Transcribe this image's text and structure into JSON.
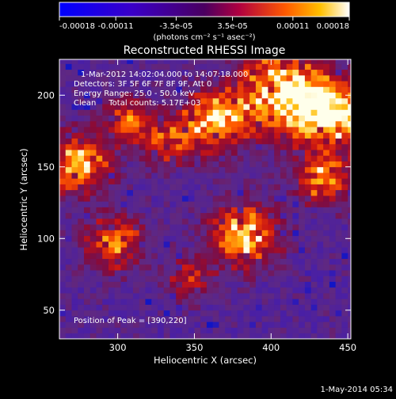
{
  "chart_data": {
    "type": "heatmap",
    "title": "Reconstructed RHESSI Image",
    "xlabel": "Heliocentric X (arcsec)",
    "ylabel": "Heliocentric Y (arcsec)",
    "xlim": [
      262,
      452
    ],
    "ylim": [
      30,
      225
    ],
    "xticks": [
      300,
      350,
      400,
      450
    ],
    "yticks": [
      50,
      100,
      150,
      200
    ],
    "colorbar": {
      "ticks": [
        "-0.00018",
        "-0.00011",
        "-3.5e-05",
        "3.5e-05",
        "0.00011",
        "0.00018"
      ],
      "range": [
        -0.00018,
        0.00018
      ],
      "units_label": "(photons cm⁻² s⁻¹ asec⁻²)"
    },
    "annotations": [
      "1-Mar-2012 14:02:04.000 to 14:07:18.000",
      "Detectors: 3F 5F 6F 7F 8F 9F, Att 0",
      "Energy Range: 25.0 - 50.0 keV",
      "Clean     Total counts: 5.17E+03"
    ],
    "peak_label": "Position of Peak = [390,220]",
    "peak": [
      390,
      220
    ],
    "bright_sources": [
      {
        "x": 405,
        "y": 200,
        "w": 28,
        "s": 1.0
      },
      {
        "x": 440,
        "y": 185,
        "w": 22,
        "s": 0.95
      },
      {
        "x": 360,
        "y": 180,
        "w": 20,
        "s": 0.85
      },
      {
        "x": 432,
        "y": 140,
        "w": 18,
        "s": 0.7
      },
      {
        "x": 380,
        "y": 100,
        "w": 22,
        "s": 0.8
      },
      {
        "x": 273,
        "y": 150,
        "w": 20,
        "s": 0.8
      },
      {
        "x": 296,
        "y": 95,
        "w": 18,
        "s": 0.7
      },
      {
        "x": 305,
        "y": 180,
        "w": 16,
        "s": 0.55
      },
      {
        "x": 330,
        "y": 165,
        "w": 16,
        "s": 0.5
      },
      {
        "x": 345,
        "y": 70,
        "w": 14,
        "s": 0.5
      }
    ]
  },
  "footer_date": "1-May-2014 05:34"
}
